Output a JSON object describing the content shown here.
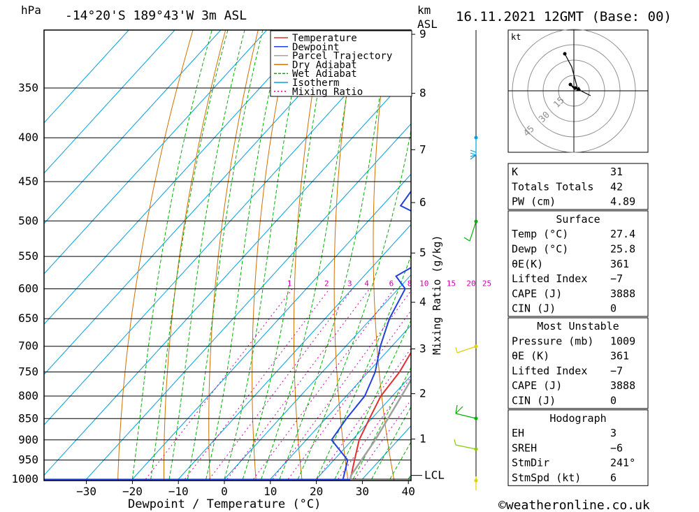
{
  "header": {
    "pressure_unit": "hPa",
    "location": "-14°20'S  189°43'W  3m  ASL",
    "km_unit": "km",
    "km_asl": "ASL",
    "datetime": "16.11.2021  12GMT  (Base: 00)"
  },
  "legend": [
    "Temperature",
    "Dewpoint",
    "Parcel Trajectory",
    "Dry Adiabat",
    "Wet Adiabat",
    "Isotherm",
    "Mixing Ratio"
  ],
  "colors": {
    "temperature": "#e03030",
    "dewpoint": "#2040e0",
    "parcel": "#a0a0a0",
    "dry_adiabat": "#d07000",
    "wet_adiabat": "#00b000",
    "isotherm": "#00a0e0",
    "mixing_ratio": "#cc00aa"
  },
  "chart_data": {
    "type": "line",
    "xlabel": "Dewpoint / Temperature (°C)",
    "ylabel_right": "Mixing Ratio (g/kg)",
    "x_ticks": [
      -30,
      -20,
      -10,
      0,
      10,
      20,
      30,
      40
    ],
    "pressure_levels": [
      350,
      400,
      450,
      500,
      550,
      600,
      650,
      700,
      750,
      800,
      850,
      900,
      950,
      1000
    ],
    "km_ticks": [
      1,
      2,
      3,
      4,
      5,
      6,
      7,
      8,
      9
    ],
    "km_ticks_p": [
      898,
      795,
      705,
      622,
      545,
      476,
      413,
      355,
      303
    ],
    "lcl_label": "LCL",
    "lcl_p": 990,
    "mixing_ratio_labels": [
      "1",
      "2",
      "3",
      "4",
      "6",
      "8",
      "10",
      "15",
      "20",
      "25"
    ],
    "mixing_ratio_values": [
      1,
      2,
      3,
      4,
      6,
      8,
      10,
      15,
      20,
      25
    ],
    "series": [
      {
        "name": "Temperature",
        "points": [
          [
            1000,
            27.4
          ],
          [
            950,
            24.5
          ],
          [
            900,
            21.5
          ],
          [
            850,
            19.5
          ],
          [
            800,
            17.5
          ],
          [
            750,
            16.8
          ],
          [
            700,
            15.0
          ],
          [
            650,
            13.8
          ],
          [
            600,
            11.0
          ],
          [
            550,
            7.0
          ],
          [
            500,
            3.5
          ],
          [
            450,
            -1.0
          ],
          [
            400,
            -7.5
          ],
          [
            350,
            -13.5
          ],
          [
            310,
            -19.0
          ]
        ]
      },
      {
        "name": "Dewpoint",
        "points": [
          [
            1000,
            25.8
          ],
          [
            950,
            23.0
          ],
          [
            900,
            15.5
          ],
          [
            850,
            14.5
          ],
          [
            800,
            14.0
          ],
          [
            750,
            11.5
          ],
          [
            700,
            7.5
          ],
          [
            650,
            4.0
          ],
          [
            600,
            1.5
          ],
          [
            580,
            -3.0
          ],
          [
            555,
            0.0
          ],
          [
            525,
            -2.0
          ],
          [
            505,
            -4.0
          ],
          [
            480,
            -16.0
          ],
          [
            450,
            -17.0
          ],
          [
            400,
            -24.0
          ],
          [
            380,
            -25.0
          ],
          [
            350,
            -34.0
          ],
          [
            320,
            -35.0
          ],
          [
            300,
            -40.0
          ]
        ]
      },
      {
        "name": "Parcel Trajectory",
        "points": [
          [
            1000,
            27.4
          ],
          [
            990,
            26.8
          ],
          [
            900,
            25.0
          ],
          [
            800,
            22.0
          ],
          [
            700,
            18.5
          ],
          [
            600,
            14.0
          ],
          [
            500,
            8.0
          ],
          [
            450,
            4.0
          ],
          [
            400,
            -1.5
          ],
          [
            350,
            -9.0
          ]
        ]
      }
    ]
  },
  "hodograph": {
    "unit": "kt",
    "ring_labels": [
      "15",
      "30",
      "45"
    ]
  },
  "table": [
    {
      "label": "K",
      "value": "31"
    },
    {
      "label": "Totals Totals",
      "value": "42"
    },
    {
      "label": "PW (cm)",
      "value": "4.89"
    },
    {
      "header": "Surface"
    },
    {
      "label": "Temp (°C)",
      "value": "27.4"
    },
    {
      "label": "Dewp (°C)",
      "value": "25.8"
    },
    {
      "label": "θE(K)",
      "value": "361"
    },
    {
      "label": "Lifted Index",
      "value": "-7"
    },
    {
      "label": "CAPE (J)",
      "value": "3888"
    },
    {
      "label": "CIN (J)",
      "value": "0"
    },
    {
      "header": "Most Unstable"
    },
    {
      "label": "Pressure (mb)",
      "value": "1009"
    },
    {
      "label": "θE (K)",
      "value": "361"
    },
    {
      "label": "Lifted Index",
      "value": "-7"
    },
    {
      "label": "CAPE (J)",
      "value": "3888"
    },
    {
      "label": "CIN (J)",
      "value": "0"
    },
    {
      "header": "Hodograph"
    },
    {
      "label": "EH",
      "value": "3"
    },
    {
      "label": "SREH",
      "value": "-6"
    },
    {
      "label": "StmDir",
      "value": "241°"
    },
    {
      "label": "StmSpd (kt)",
      "value": "6"
    }
  ],
  "footer": "©weatheronline.co.uk"
}
